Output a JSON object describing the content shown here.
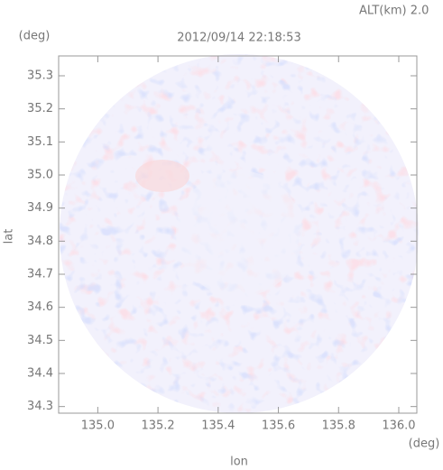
{
  "chart_data": {
    "type": "radar-ppi",
    "title": "2012/09/14 22:18:53",
    "subtitle": "ALT(km) 2.0",
    "x_label": "lon",
    "y_label": "lat",
    "x_unit": "(deg)",
    "y_unit": "(deg)",
    "xlim": [
      134.87,
      136.06
    ],
    "xticks": [
      {
        "value": 135.0,
        "label": "135.0"
      },
      135.2,
      135.4,
      135.6,
      135.8,
      {
        "value": 136.0,
        "label": "136.0"
      }
    ],
    "ylim": [
      34.28,
      35.36
    ],
    "yticks": [
      35.3,
      35.2,
      35.1,
      {
        "value": 35.0,
        "label": "35.0"
      },
      34.9,
      34.8,
      34.7,
      34.6,
      34.5,
      34.4,
      34.3
    ]
  }
}
